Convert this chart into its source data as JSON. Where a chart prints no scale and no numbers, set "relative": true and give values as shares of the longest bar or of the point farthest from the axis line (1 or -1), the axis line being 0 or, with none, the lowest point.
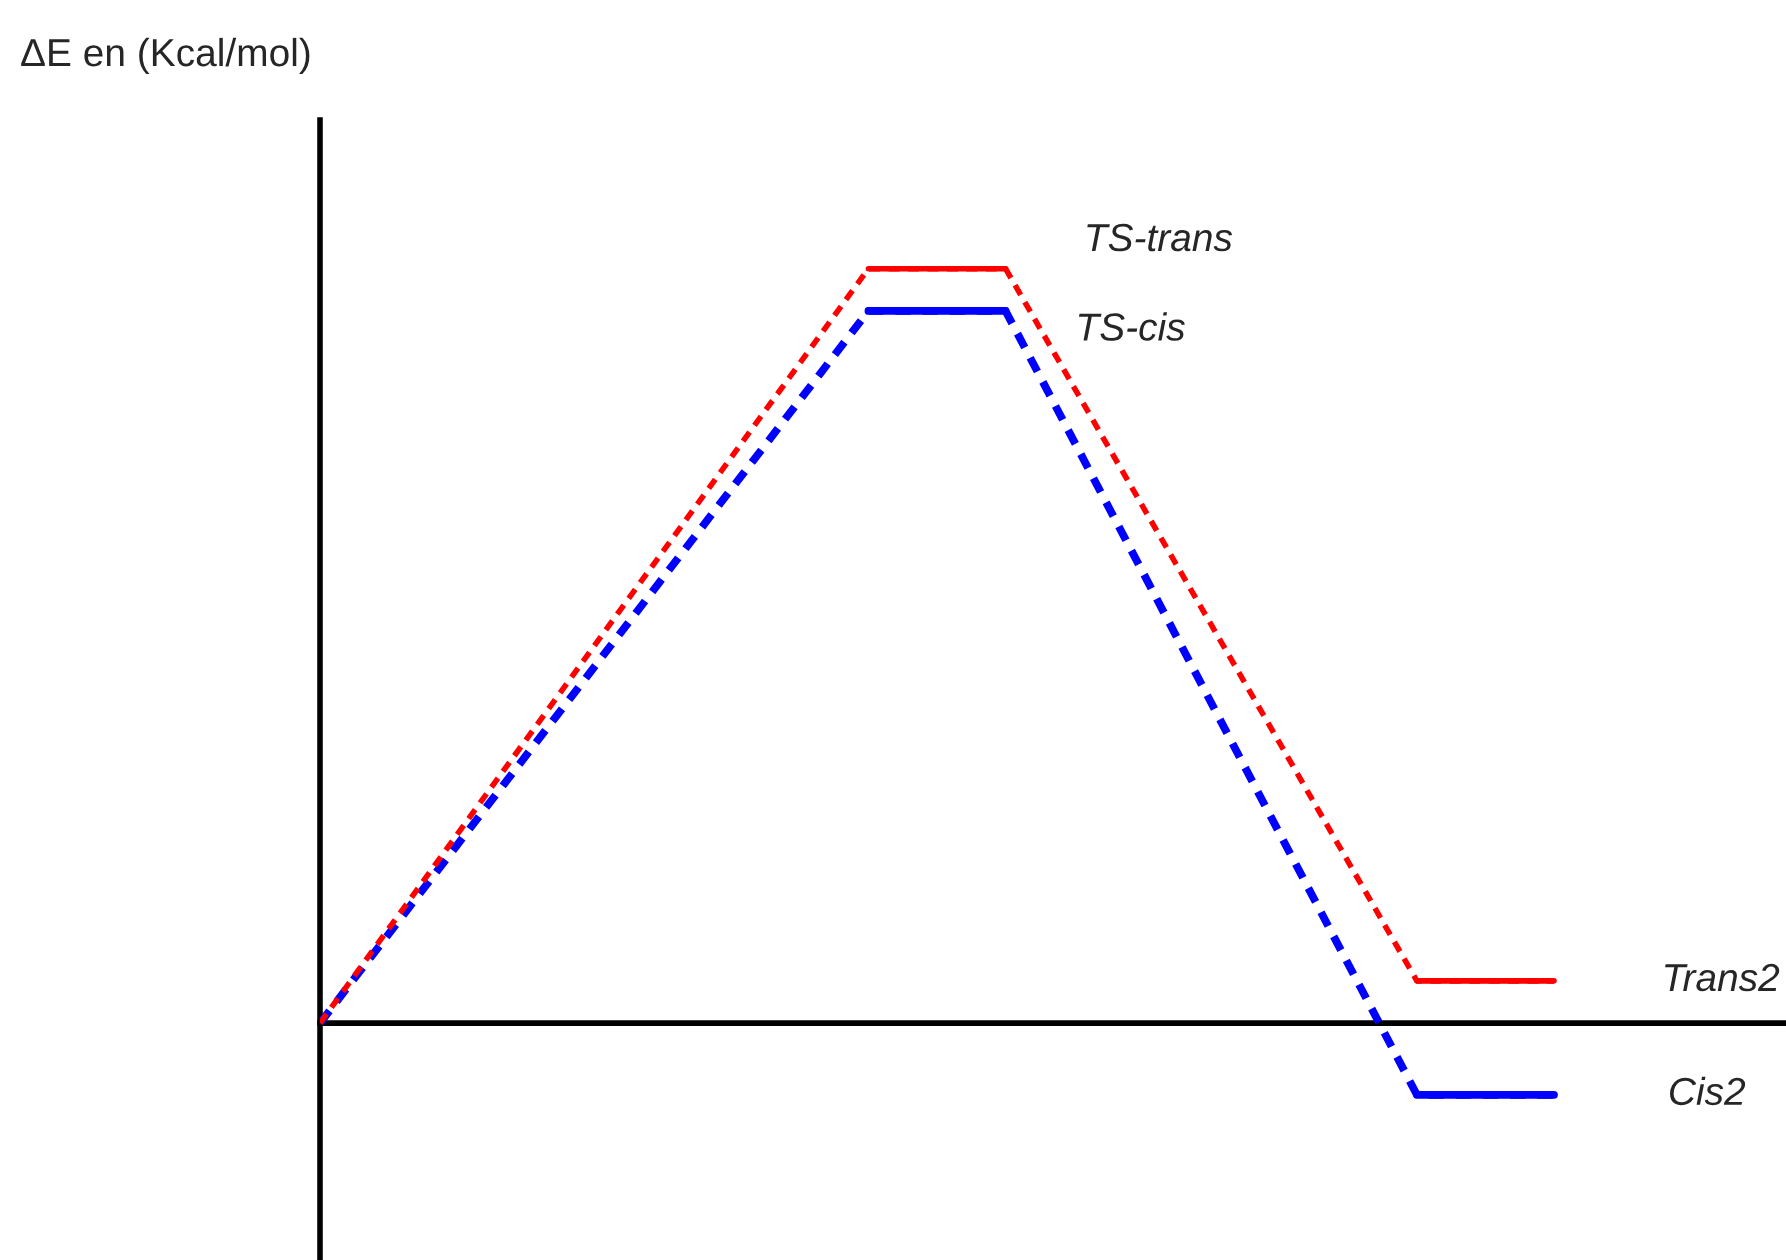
{
  "chart_data": {
    "type": "line",
    "relative": true,
    "categories": [
      null,
      null,
      null,
      null,
      null,
      null,
      null,
      null,
      null,
      null
    ],
    "series": [
      {
        "color": "#ff0000",
        "line_style": "dashed",
        "values": [
          0,
          0.25,
          0.5,
          0.75,
          1,
          1,
          0.685,
          0.371,
          0.056,
          0.056
        ]
      },
      {
        "color": "#0000ff",
        "line_style": "dashed",
        "values": [
          0,
          0.236,
          0.472,
          0.708,
          0.944,
          0.944,
          0.598,
          0.251,
          -0.095,
          -0.095
        ]
      },
      {
        "color": "#ff0000",
        "line_style": "solid",
        "values": [
          null,
          null,
          null,
          null,
          1,
          1,
          null,
          null,
          0.056,
          0.056
        ]
      },
      {
        "color": "#0000ff",
        "line_style": "solid",
        "values": [
          null,
          null,
          null,
          null,
          0.944,
          0.944,
          null,
          null,
          -0.095,
          -0.095
        ]
      }
    ],
    "annotations": [
      "ΔE en (Kcal/mol)",
      "TS-trans",
      "TS-cis",
      "Trans2",
      "Cis2"
    ]
  }
}
